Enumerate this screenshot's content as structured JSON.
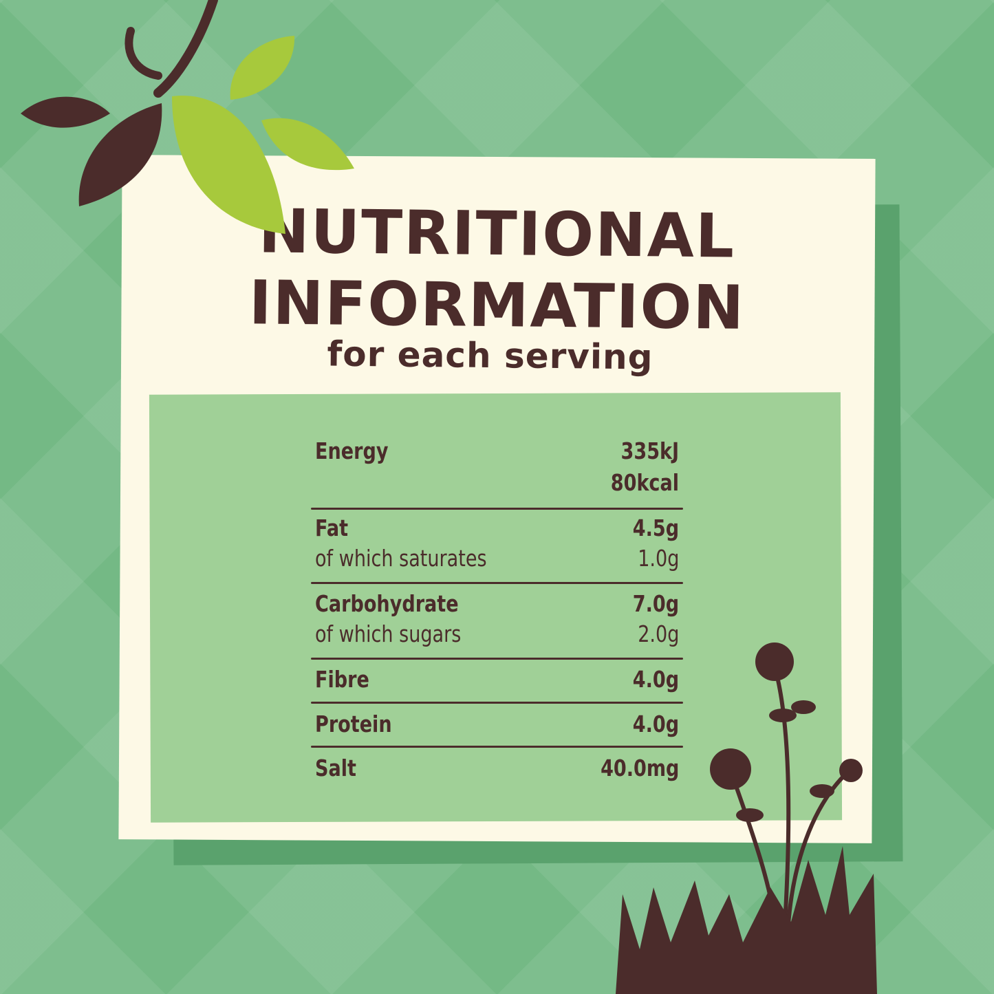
{
  "heading": {
    "line1": "NUTRITIONAL",
    "line2": "INFORMATION",
    "subtitle": "for each serving"
  },
  "nutrition": [
    {
      "label": "Energy",
      "value": "335kJ",
      "bold": true
    },
    {
      "label": "",
      "value": "80kcal",
      "bold": true
    },
    {
      "label": "Fat",
      "value": "4.5g",
      "bold": true
    },
    {
      "label": "of which saturates",
      "value": "1.0g",
      "bold": false
    },
    {
      "label": "Carbohydrate",
      "value": "7.0g",
      "bold": true
    },
    {
      "label": "of which sugars",
      "value": "2.0g",
      "bold": false
    },
    {
      "label": "Fibre",
      "value": "4.0g",
      "bold": true
    },
    {
      "label": "Protein",
      "value": "4.0g",
      "bold": true
    },
    {
      "label": "Salt",
      "value": "40.0mg",
      "bold": true
    }
  ],
  "colors": {
    "background": "#74b985",
    "card": "#fdf9e6",
    "table_bg": "#a0d097",
    "text": "#4b2c2b",
    "leaf_light": "#a7c93c"
  }
}
